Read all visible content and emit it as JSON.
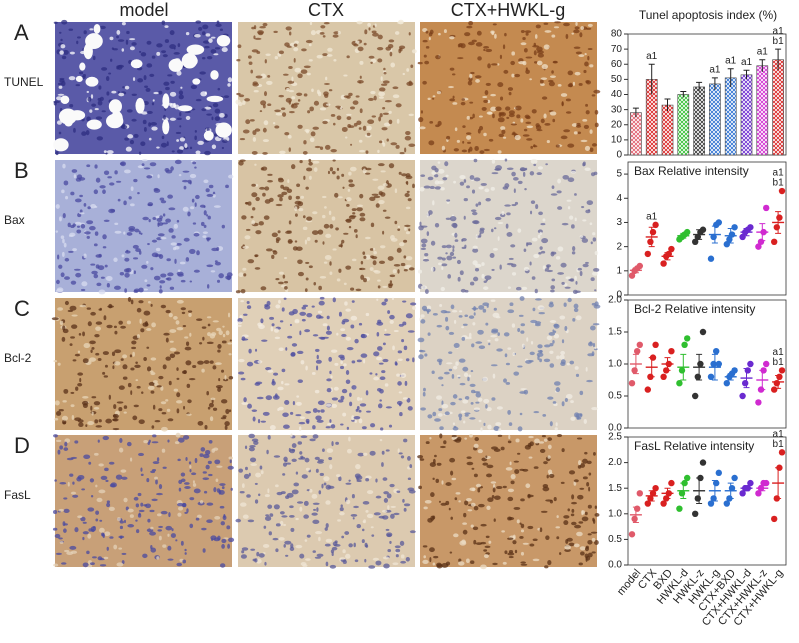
{
  "image_grid": {
    "column_labels": [
      "model",
      "CTX",
      "CTX+HWKL-g"
    ],
    "rows": [
      {
        "letter": "A",
        "label": "TUNEL"
      },
      {
        "letter": "B",
        "label": "Bax"
      },
      {
        "letter": "C",
        "label": "Bcl-2"
      },
      {
        "letter": "D",
        "label": "FasL"
      }
    ]
  },
  "chart_data": [
    {
      "type": "bar",
      "title": "Tunel apoptosis index (%)",
      "values": [
        28,
        50,
        33,
        40,
        45,
        47,
        51,
        53,
        59,
        63
      ],
      "errors": [
        3,
        10,
        4,
        2,
        3,
        4,
        6,
        3,
        4,
        7
      ],
      "colors": [
        "#e05a6a",
        "#d92020",
        "#d92020",
        "#2fbf2f",
        "#333333",
        "#2a6fd0",
        "#2a6fd0",
        "#6a2ad0",
        "#d02ad0",
        "#d92020"
      ],
      "annotations": [
        null,
        [
          "a1"
        ],
        null,
        null,
        null,
        [
          "a1"
        ],
        [
          "a1"
        ],
        [
          "a1"
        ],
        [
          "a1"
        ],
        [
          "a1",
          "b1"
        ]
      ],
      "ylim": [
        0,
        80
      ],
      "yticks": [
        0,
        10,
        20,
        30,
        40,
        50,
        60,
        70,
        80
      ]
    },
    {
      "type": "dot",
      "title": "Bax Relative intensity",
      "points": [
        [
          0.8,
          1.0,
          1.1,
          1.2
        ],
        [
          1.7,
          2.2,
          2.6,
          2.9
        ],
        [
          1.3,
          1.6,
          1.7,
          1.9
        ],
        [
          2.3,
          2.4,
          2.5,
          2.6
        ],
        [
          2.2,
          2.4,
          2.6,
          2.7
        ],
        [
          1.5,
          2.4,
          2.9,
          3.0
        ],
        [
          2.1,
          2.3,
          2.5,
          2.8
        ],
        [
          2.4,
          2.6,
          2.7,
          2.8
        ],
        [
          2.0,
          2.2,
          2.6,
          3.6
        ],
        [
          2.2,
          2.8,
          3.2,
          4.3
        ]
      ],
      "means": [
        1.02,
        2.4,
        1.6,
        2.45,
        2.5,
        2.5,
        2.45,
        2.6,
        2.6,
        3.0
      ],
      "errors": [
        0.1,
        0.4,
        0.15,
        0.1,
        0.2,
        0.35,
        0.3,
        0.15,
        0.35,
        0.45
      ],
      "colors": [
        "#e05a6a",
        "#d92020",
        "#d92020",
        "#2fbf2f",
        "#333333",
        "#2a6fd0",
        "#2a6fd0",
        "#6a2ad0",
        "#d02ad0",
        "#d92020"
      ],
      "annotations": [
        null,
        [
          "a1"
        ],
        null,
        null,
        null,
        null,
        null,
        null,
        null,
        [
          "a1",
          "b1"
        ]
      ],
      "ylim": [
        0,
        5.5
      ],
      "yticks": [
        0,
        1,
        2,
        3,
        4,
        5
      ]
    },
    {
      "type": "dot",
      "title": "Bcl-2 Relative intensity",
      "points": [
        [
          0.7,
          0.9,
          1.2,
          1.3
        ],
        [
          0.6,
          0.8,
          1.1,
          1.3
        ],
        [
          0.8,
          0.9,
          1.0,
          1.2
        ],
        [
          0.7,
          0.9,
          1.3,
          1.4
        ],
        [
          0.5,
          0.8,
          1.0,
          1.5
        ],
        [
          0.8,
          1.0,
          1.2,
          1.0
        ],
        [
          0.7,
          0.8,
          0.85,
          0.9
        ],
        [
          0.5,
          0.7,
          0.9,
          1.0
        ],
        [
          0.4,
          0.6,
          0.9,
          1.0
        ],
        [
          0.6,
          0.7,
          0.8,
          0.9
        ]
      ],
      "means": [
        1.0,
        0.95,
        1.0,
        0.95,
        0.95,
        0.95,
        0.8,
        0.78,
        0.75,
        0.72
      ],
      "errors": [
        0.15,
        0.15,
        0.1,
        0.2,
        0.2,
        0.2,
        0.05,
        0.15,
        0.15,
        0.1
      ],
      "colors": [
        "#e05a6a",
        "#d92020",
        "#d92020",
        "#2fbf2f",
        "#333333",
        "#2a6fd0",
        "#2a6fd0",
        "#6a2ad0",
        "#d02ad0",
        "#d92020"
      ],
      "annotations": [
        null,
        null,
        null,
        null,
        null,
        null,
        null,
        null,
        null,
        [
          "a1",
          "b1"
        ]
      ],
      "ylim": [
        0,
        2.0
      ],
      "yticks": [
        {
          "value": 0,
          "label": "0.0"
        },
        0.5,
        {
          "value": 1,
          "label": "1.0"
        },
        1.5,
        {
          "value": 2,
          "label": "2.0"
        }
      ]
    },
    {
      "type": "dot",
      "title": "FasL Relative intensity",
      "categories": [
        "model",
        "CTX",
        "BXD",
        "HWKL-d",
        "HWKL-z",
        "HWKL-g",
        "CTX+BXD",
        "CTX+HWKL-d",
        "CTX+HWKL-z",
        "CTX+HWKL-g"
      ],
      "points": [
        [
          0.6,
          0.9,
          1.1,
          1.4
        ],
        [
          1.2,
          1.3,
          1.4,
          1.5
        ],
        [
          1.2,
          1.3,
          1.4,
          1.6
        ],
        [
          1.1,
          1.4,
          1.6,
          1.7
        ],
        [
          1.0,
          1.3,
          1.7,
          2.0
        ],
        [
          1.2,
          1.3,
          1.6,
          1.8
        ],
        [
          1.2,
          1.3,
          1.5,
          1.7
        ],
        [
          1.4,
          1.5,
          1.5,
          1.6
        ],
        [
          1.4,
          1.5,
          1.6,
          1.6
        ],
        [
          0.9,
          1.3,
          1.9,
          2.2
        ]
      ],
      "means": [
        0.98,
        1.35,
        1.4,
        1.45,
        1.45,
        1.45,
        1.45,
        1.5,
        1.5,
        1.6
      ],
      "errors": [
        0.15,
        0.1,
        0.1,
        0.15,
        0.25,
        0.2,
        0.15,
        0.05,
        0.05,
        0.3
      ],
      "colors": [
        "#e05a6a",
        "#d92020",
        "#d92020",
        "#2fbf2f",
        "#333333",
        "#2a6fd0",
        "#2a6fd0",
        "#6a2ad0",
        "#d02ad0",
        "#d92020"
      ],
      "annotations": [
        null,
        null,
        null,
        null,
        null,
        null,
        null,
        null,
        null,
        [
          "a1",
          "b1"
        ]
      ],
      "ylim": [
        0,
        2.5
      ],
      "yticks": [
        {
          "value": 0,
          "label": "0.0"
        },
        0.5,
        {
          "value": 1,
          "label": "1.0"
        },
        1.5,
        {
          "value": 2,
          "label": "2.0"
        },
        2.5
      ]
    }
  ]
}
